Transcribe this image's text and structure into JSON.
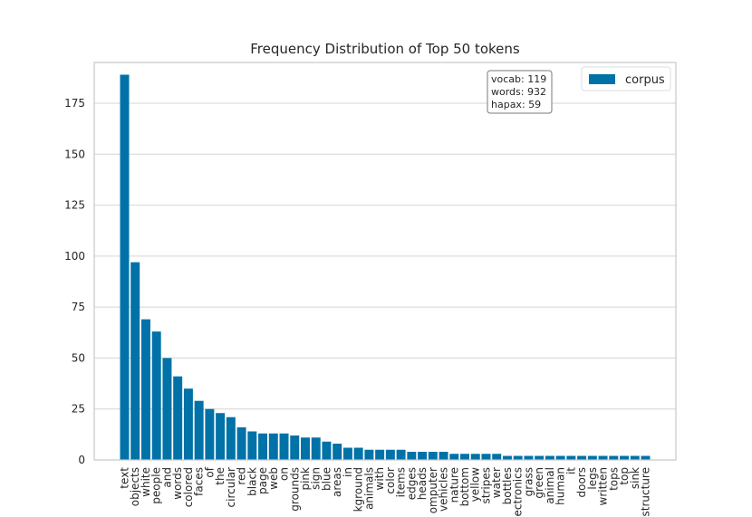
{
  "chart_data": {
    "type": "bar",
    "title": "Frequency Distribution of Top 50 tokens",
    "xlabel": "",
    "ylabel": "",
    "ylim": [
      0,
      195
    ],
    "yticks": [
      0,
      25,
      50,
      75,
      100,
      125,
      150,
      175
    ],
    "grid": "horizontal",
    "legend_position": "top-right",
    "colors": {
      "bar": "#0072a7",
      "grid": "#d4d4d4",
      "frame": "#c8c8c8",
      "text": "#262626"
    },
    "categories": [
      "text",
      "objects",
      "white",
      "people",
      "and",
      "words",
      "colored",
      "faces",
      "of",
      "the",
      "circular",
      "red",
      "black",
      "page",
      "web",
      "on",
      "grounds",
      "pink",
      "sign",
      "blue",
      "areas",
      "in",
      "kground",
      "animals",
      "with",
      "color",
      "items",
      "edges",
      "heads",
      "omputer",
      "vehicles",
      "nature",
      "bottom",
      "yellow",
      "stripes",
      "water",
      "bottles",
      "ectronics",
      "grass",
      "green",
      "animal",
      "human",
      "it",
      "doors",
      "legs",
      "written",
      "tops",
      "top",
      "sink",
      "structure"
    ],
    "series": [
      {
        "name": "corpus",
        "values": [
          189,
          97,
          69,
          63,
          50,
          41,
          35,
          29,
          25,
          23,
          21,
          16,
          14,
          13,
          13,
          13,
          12,
          11,
          11,
          9,
          8,
          6,
          6,
          5,
          5,
          5,
          5,
          4,
          4,
          4,
          4,
          3,
          3,
          3,
          3,
          3,
          2,
          2,
          2,
          2,
          2,
          2,
          2,
          2,
          2,
          2,
          2,
          2,
          2,
          2
        ]
      }
    ],
    "info_box": [
      "vocab: 119",
      "words: 932",
      "hapax: 59"
    ]
  }
}
